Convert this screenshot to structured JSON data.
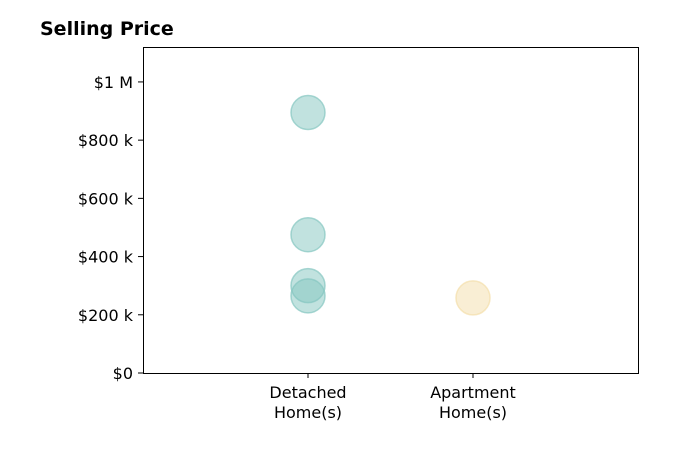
{
  "chart_data": {
    "type": "scatter",
    "title": "Selling Price",
    "xlabel": "",
    "ylabel": "",
    "categories": [
      "Detached\nHome(s)",
      "Apartment\nHome(s)"
    ],
    "x_range": [
      -1,
      2
    ],
    "ylim": [
      0,
      1120000
    ],
    "yticks": [
      0,
      200000,
      400000,
      600000,
      800000,
      1000000
    ],
    "ytick_labels": [
      "$0",
      "$200 k",
      "$400 k",
      "$600 k",
      "$800 k",
      "$1 M"
    ],
    "grid": false,
    "legend": "none",
    "series": [
      {
        "category": "Detached\nHome(s)",
        "color": "#84c6c0",
        "values": [
          895000,
          475000,
          300000,
          265000
        ]
      },
      {
        "category": "Apartment\nHome(s)",
        "color": "#f4deaa",
        "values": [
          258000
        ]
      }
    ]
  }
}
